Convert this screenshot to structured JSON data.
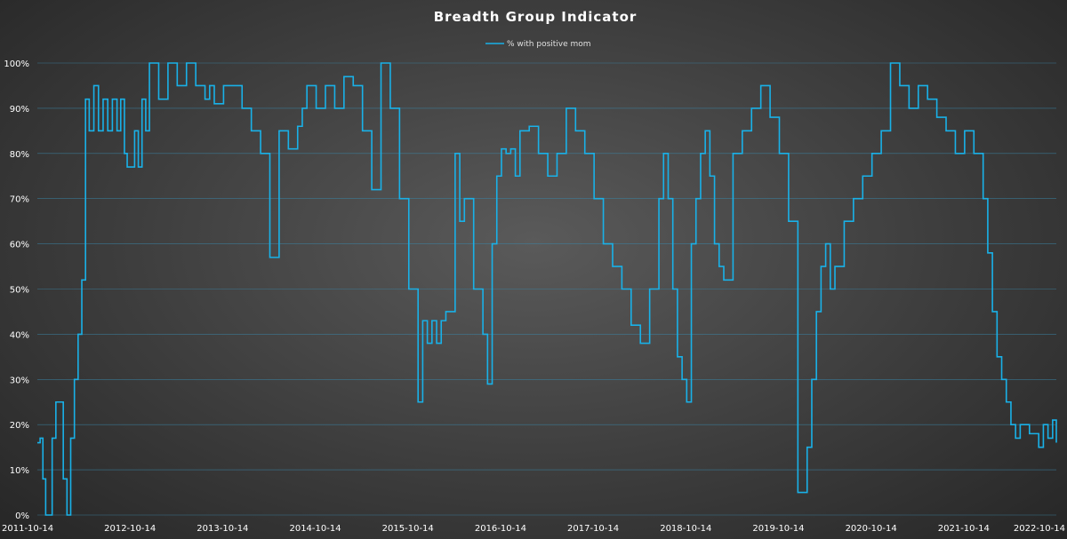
{
  "chart_data": {
    "type": "line",
    "title": "Breadth Group Indicator",
    "xlabel": "",
    "ylabel": "",
    "ylim": [
      0,
      100
    ],
    "y_ticks": [
      "0%",
      "10%",
      "20%",
      "30%",
      "40%",
      "50%",
      "60%",
      "70%",
      "80%",
      "90%",
      "100%"
    ],
    "x_ticks": [
      "2011-10-14",
      "2012-10-14",
      "2013-10-14",
      "2014-10-14",
      "2015-10-14",
      "2016-10-14",
      "2017-10-14",
      "2018-10-14",
      "2019-10-14",
      "2020-10-14",
      "2021-10-14",
      "2022-10-14"
    ],
    "xlim": [
      2011.79,
      2022.79
    ],
    "grid": true,
    "legend_position": "top-center",
    "line_color": "#19b1e8",
    "series": [
      {
        "name": "% with positive mom",
        "x": [
          2011.79,
          2011.82,
          2011.85,
          2011.88,
          2011.91,
          2011.95,
          2011.99,
          2012.03,
          2012.07,
          2012.11,
          2012.15,
          2012.19,
          2012.23,
          2012.27,
          2012.31,
          2012.35,
          2012.4,
          2012.45,
          2012.5,
          2012.55,
          2012.6,
          2012.65,
          2012.69,
          2012.73,
          2012.76,
          2012.8,
          2012.84,
          2012.88,
          2012.92,
          2012.96,
          2013.0,
          2013.1,
          2013.2,
          2013.3,
          2013.4,
          2013.5,
          2013.6,
          2013.65,
          2013.7,
          2013.8,
          2013.9,
          2014.0,
          2014.1,
          2014.2,
          2014.3,
          2014.4,
          2014.5,
          2014.6,
          2014.65,
          2014.7,
          2014.8,
          2014.9,
          2015.0,
          2015.1,
          2015.2,
          2015.3,
          2015.4,
          2015.5,
          2015.6,
          2015.7,
          2015.8,
          2015.9,
          2015.95,
          2016.0,
          2016.05,
          2016.1,
          2016.15,
          2016.2,
          2016.25,
          2016.3,
          2016.35,
          2016.4,
          2016.5,
          2016.6,
          2016.65,
          2016.7,
          2016.75,
          2016.8,
          2016.85,
          2016.9,
          2016.95,
          2017.0,
          2017.1,
          2017.2,
          2017.3,
          2017.4,
          2017.5,
          2017.6,
          2017.7,
          2017.8,
          2017.9,
          2018.0,
          2018.1,
          2018.2,
          2018.3,
          2018.4,
          2018.5,
          2018.55,
          2018.6,
          2018.65,
          2018.7,
          2018.75,
          2018.8,
          2018.85,
          2018.9,
          2018.95,
          2019.0,
          2019.05,
          2019.1,
          2019.15,
          2019.2,
          2019.3,
          2019.4,
          2019.5,
          2019.6,
          2019.7,
          2019.8,
          2019.9,
          2020.0,
          2020.1,
          2020.15,
          2020.2,
          2020.25,
          2020.3,
          2020.35,
          2020.4,
          2020.5,
          2020.6,
          2020.7,
          2020.8,
          2020.9,
          2021.0,
          2021.1,
          2021.2,
          2021.3,
          2021.4,
          2021.5,
          2021.6,
          2021.7,
          2021.8,
          2021.9,
          2022.0,
          2022.05,
          2022.1,
          2022.15,
          2022.2,
          2022.25,
          2022.3,
          2022.35,
          2022.4,
          2022.5,
          2022.6,
          2022.65,
          2022.7,
          2022.75,
          2022.79
        ],
        "values": [
          16,
          17,
          8,
          0,
          0,
          17,
          25,
          25,
          8,
          0,
          17,
          30,
          40,
          52,
          92,
          85,
          95,
          85,
          92,
          85,
          92,
          85,
          92,
          80,
          77,
          77,
          85,
          77,
          92,
          85,
          100,
          92,
          100,
          95,
          100,
          95,
          92,
          95,
          91,
          95,
          95,
          90,
          85,
          80,
          57,
          85,
          81,
          86,
          90,
          95,
          90,
          95,
          90,
          97,
          95,
          85,
          72,
          100,
          90,
          70,
          50,
          25,
          43,
          38,
          43,
          38,
          43,
          45,
          45,
          80,
          65,
          70,
          50,
          40,
          29,
          60,
          75,
          81,
          80,
          81,
          75,
          85,
          86,
          80,
          75,
          80,
          90,
          85,
          80,
          70,
          60,
          55,
          50,
          42,
          38,
          50,
          70,
          80,
          70,
          50,
          35,
          30,
          25,
          60,
          70,
          80,
          85,
          75,
          60,
          55,
          52,
          80,
          85,
          90,
          95,
          88,
          80,
          65,
          5,
          15,
          30,
          45,
          55,
          60,
          50,
          55,
          65,
          70,
          75,
          80,
          85,
          100,
          95,
          90,
          95,
          92,
          88,
          85,
          80,
          85,
          80,
          70,
          58,
          45,
          35,
          30,
          25,
          20,
          17,
          20,
          18,
          15,
          20,
          17,
          21,
          16
        ]
      }
    ]
  }
}
